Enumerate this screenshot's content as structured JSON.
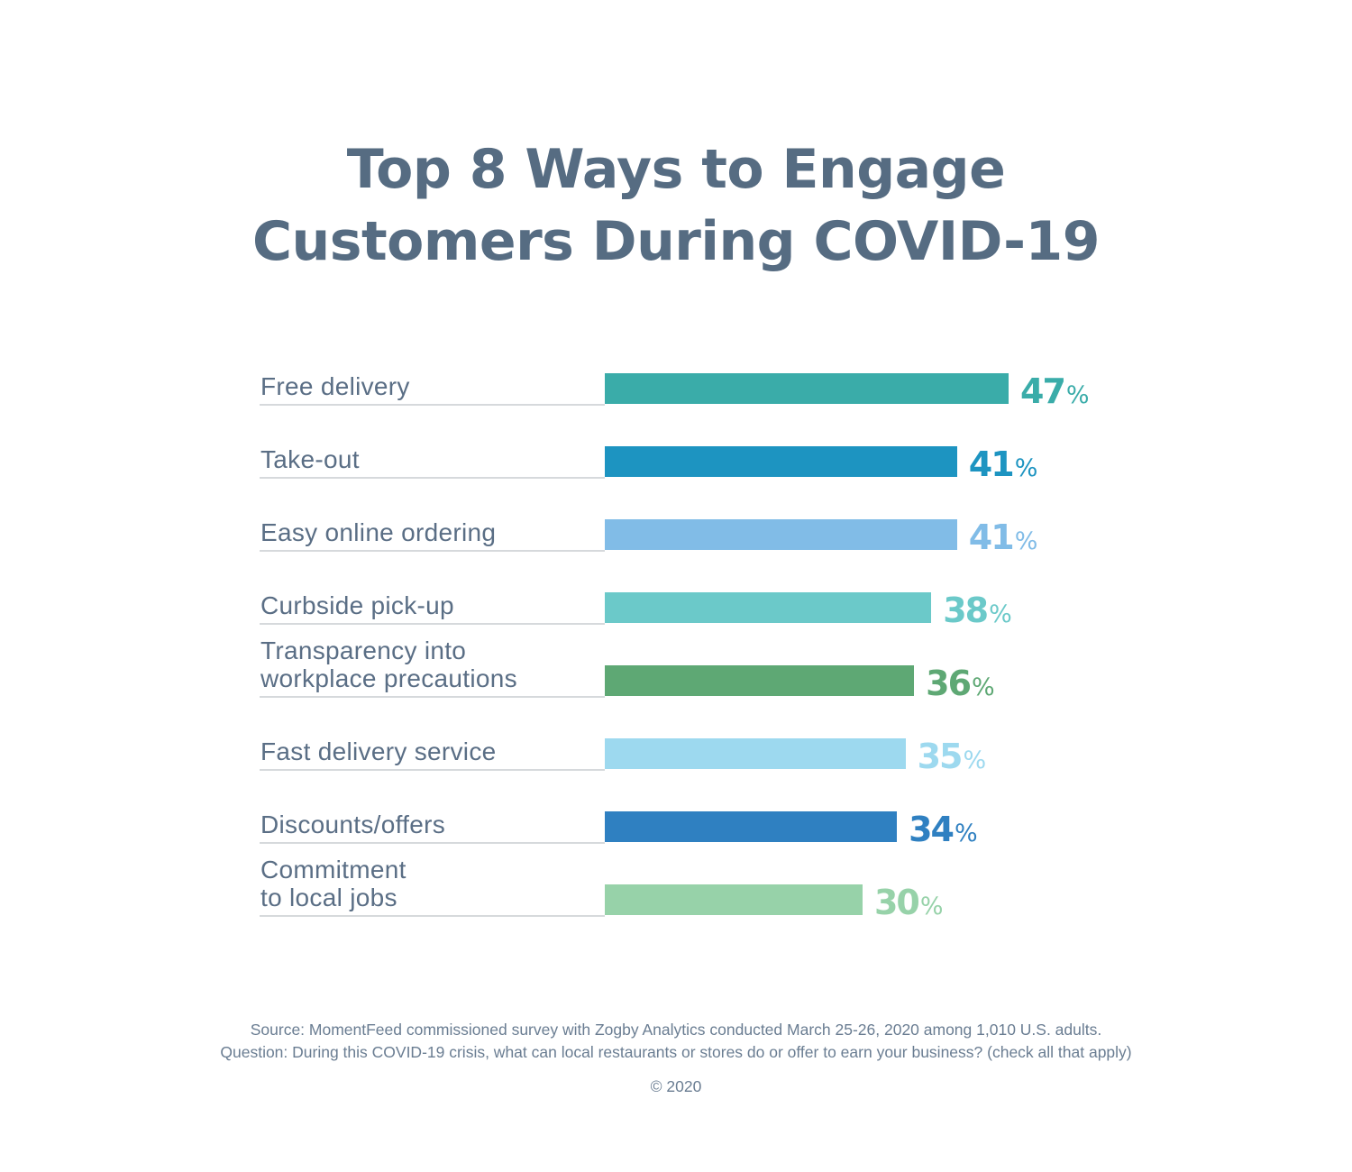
{
  "title_lines": [
    "Top 8 Ways to Engage",
    "Customers During COVID-19"
  ],
  "chart_data": {
    "type": "bar",
    "orientation": "horizontal",
    "title": "Top 8 Ways to Engage Customers During COVID-19",
    "xlabel": "",
    "ylabel": "",
    "xlim": [
      0,
      47
    ],
    "grid": false,
    "value_suffix": "%",
    "categories": [
      "Free delivery",
      "Take-out",
      "Easy online ordering",
      "Curbside pick-up",
      "Transparency into workplace precautions",
      "Fast delivery service",
      "Discounts/offers",
      "Commitment to local jobs"
    ],
    "label_lines": [
      [
        "Free delivery"
      ],
      [
        "Take-out"
      ],
      [
        "Easy online ordering"
      ],
      [
        "Curbside pick-up"
      ],
      [
        "Transparency into",
        "workplace precautions"
      ],
      [
        "Fast delivery service"
      ],
      [
        "Discounts/offers"
      ],
      [
        "Commitment",
        "to local jobs"
      ]
    ],
    "values": [
      47,
      41,
      41,
      38,
      36,
      35,
      34,
      30
    ],
    "colors": [
      "#3aaca9",
      "#1d94c1",
      "#81bce7",
      "#6bc9c9",
      "#5ea874",
      "#9dd9ef",
      "#2f80c1",
      "#97d2a9"
    ]
  },
  "footer": {
    "source": "Source: MomentFeed commissioned survey with Zogby Analytics conducted March 25-26, 2020 among 1,010 U.S. adults.",
    "question": "Question: During this COVID-19 crisis, what can local restaurants or stores do or offer to earn your business? (check all that apply)",
    "copyright": "© 2020"
  }
}
